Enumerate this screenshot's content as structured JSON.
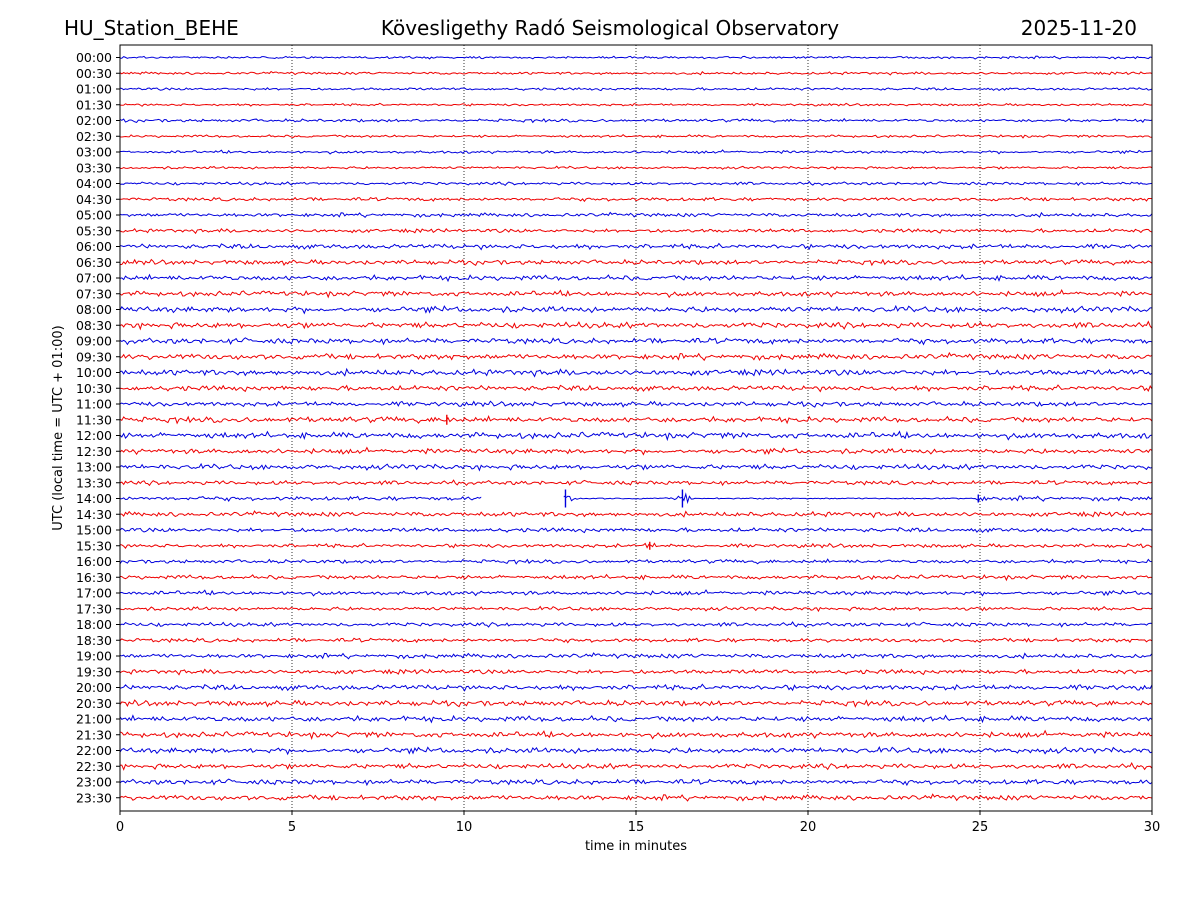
{
  "header": {
    "station": "HU_Station_BEHE",
    "observatory": "Kövesligethy Radó Seismological Observatory",
    "date": "2025-11-20"
  },
  "chart_data": {
    "type": "line",
    "title": "Kövesligethy Radó Seismological Observatory",
    "xlabel": "time in minutes",
    "ylabel": "UTC (local time = UTC + 01:00)",
    "xlim": [
      0,
      30
    ],
    "xticks": [
      0,
      5,
      10,
      15,
      20,
      25,
      30
    ],
    "vertical_grid_at": [
      5,
      10,
      15,
      20,
      25
    ],
    "grid": "vertical dotted",
    "row_labels": [
      "00:00",
      "00:30",
      "01:00",
      "01:30",
      "02:00",
      "02:30",
      "03:00",
      "03:30",
      "04:00",
      "04:30",
      "05:00",
      "05:30",
      "06:00",
      "06:30",
      "07:00",
      "07:30",
      "08:00",
      "08:30",
      "09:00",
      "09:30",
      "10:00",
      "10:30",
      "11:00",
      "11:30",
      "12:00",
      "12:30",
      "13:00",
      "13:30",
      "14:00",
      "14:30",
      "15:00",
      "15:30",
      "16:00",
      "16:30",
      "17:00",
      "17:30",
      "18:00",
      "18:30",
      "19:00",
      "19:30",
      "20:00",
      "20:30",
      "21:00",
      "21:30",
      "22:00",
      "22:30",
      "23:00",
      "23:30"
    ],
    "row_colors": [
      "#0000dd",
      "#ee0000"
    ],
    "noise_amplitude": [
      1.0,
      1.1,
      1.1,
      1.0,
      1.3,
      1.1,
      1.2,
      1.1,
      1.3,
      1.5,
      1.6,
      1.6,
      2.0,
      2.0,
      2.2,
      2.2,
      2.5,
      2.5,
      2.4,
      2.4,
      2.5,
      2.2,
      2.0,
      2.4,
      2.6,
      2.2,
      2.2,
      1.8,
      1.8,
      2.0,
      1.8,
      1.6,
      1.6,
      1.8,
      1.8,
      1.6,
      1.7,
      1.7,
      1.9,
      1.9,
      2.2,
      2.3,
      2.4,
      2.4,
      2.4,
      2.2,
      2.2,
      2.2
    ],
    "events": [
      {
        "row": "11:30",
        "minute": 9.5,
        "amplitude": 5
      },
      {
        "row": "14:00",
        "minute": 12.95,
        "amplitude": 9
      },
      {
        "row": "14:00",
        "minute": 16.35,
        "amplitude": 9
      },
      {
        "row": "14:00",
        "minute": 24.95,
        "amplitude": 4
      },
      {
        "row": "15:30",
        "minute": 15.4,
        "amplitude": 4
      }
    ],
    "data_gaps": [
      {
        "row": "14:00",
        "start": 10.5,
        "end": 12.9,
        "type": "filled"
      },
      {
        "row": "14:00",
        "start": 12.95,
        "end": 16.35,
        "type": "flat"
      },
      {
        "row": "14:00",
        "start": 16.45,
        "end": 24.9,
        "type": "flat"
      }
    ]
  }
}
